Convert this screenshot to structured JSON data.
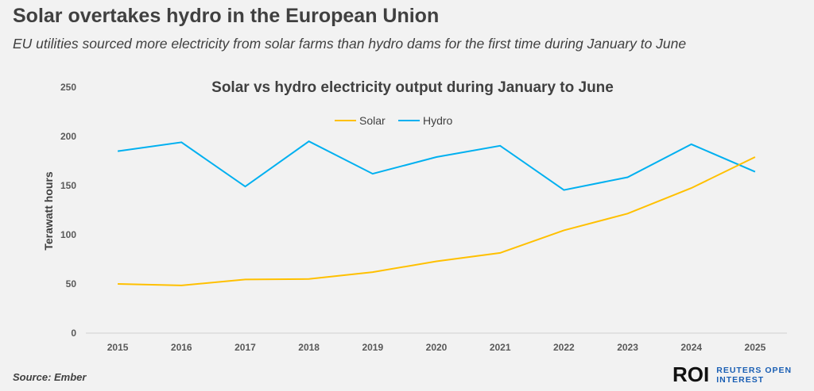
{
  "header": {
    "title": "Solar overtakes hydro in the European Union",
    "subtitle": "EU utilities sourced more electricity from solar farms than hydro dams for the first time during January to June"
  },
  "footer": {
    "source": "Source: Ember",
    "logo_mark": "ROI",
    "logo_line1": "REUTERS OPEN",
    "logo_line2": "INTEREST"
  },
  "colors": {
    "solar": "#ffc000",
    "hydro": "#00b0f0",
    "axis_text": "#595959"
  },
  "chart_data": {
    "type": "line",
    "title": "Solar vs hydro electricity output during January to June",
    "xlabel": "",
    "ylabel": "Terawatt hours",
    "ylim": [
      0,
      250
    ],
    "yticks": [
      "0",
      "50",
      "100",
      "150",
      "200",
      "250"
    ],
    "categories": [
      "2015",
      "2016",
      "2017",
      "2018",
      "2019",
      "2020",
      "2021",
      "2022",
      "2023",
      "2024",
      "2025"
    ],
    "legend_position": "top-center",
    "series": [
      {
        "name": "Solar",
        "values": [
          50,
          48.5,
          54.5,
          55,
          62,
          73,
          81.5,
          104.5,
          121.5,
          147.5,
          179
        ]
      },
      {
        "name": "Hydro",
        "values": [
          185,
          194,
          149,
          195,
          162,
          179,
          190.5,
          145.5,
          158.5,
          192,
          164
        ]
      }
    ]
  }
}
